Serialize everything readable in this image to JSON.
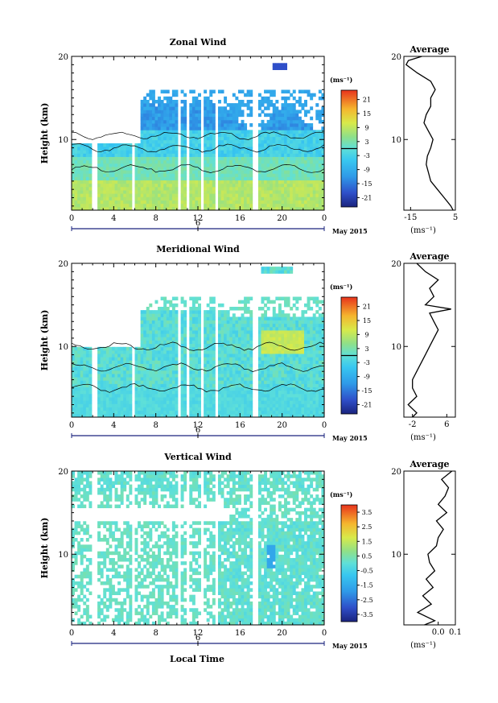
{
  "figure": {
    "xlabel": "Local Time",
    "date_label": "May 2015",
    "day_marker": "6"
  },
  "chart_data": [
    {
      "type": "heatmap",
      "title": "Zonal Wind",
      "ylabel": "Height (km)",
      "x_ticks": [
        "0",
        "4",
        "8",
        "12",
        "16",
        "20",
        "0"
      ],
      "y_ticks": [
        "10",
        "20"
      ],
      "xlim": [
        0,
        24
      ],
      "ylim": [
        1.5,
        20
      ],
      "unit": "(ms⁻¹)",
      "colorbar_ticks": [
        "21",
        "15",
        "9",
        "3",
        "-3",
        "-9",
        "-15",
        "-21"
      ],
      "colorbar_range": [
        -25,
        25
      ],
      "gaps_hours": [
        [
          2.0,
          2.4
        ],
        [
          5.7,
          6.1
        ],
        [
          10.0,
          10.4
        ],
        [
          11.0,
          11.3
        ],
        [
          12.2,
          12.5
        ],
        [
          13.6,
          14.0
        ],
        [
          17.2,
          17.6
        ]
      ],
      "profile": {
        "title": "Average",
        "xlim": [
          -18,
          5
        ],
        "x_ticks": [
          "-15",
          "5"
        ],
        "y_ticks": [
          "10",
          "20"
        ],
        "unit": "(ms⁻¹)",
        "heights_km": [
          1.5,
          2,
          3,
          4,
          5,
          6,
          7,
          8,
          9,
          10,
          11,
          12,
          13,
          14,
          15,
          16,
          17,
          18,
          19,
          19.5,
          20
        ],
        "values": [
          4,
          3,
          0,
          -3,
          -6,
          -7,
          -8,
          -7.5,
          -6,
          -5,
          -7,
          -9,
          -8,
          -6,
          -6,
          -4,
          -6,
          -12,
          -17,
          -16,
          -10
        ]
      }
    },
    {
      "type": "heatmap",
      "title": "Meridional Wind",
      "ylabel": "Height (km)",
      "x_ticks": [
        "0",
        "4",
        "8",
        "12",
        "16",
        "20",
        "0"
      ],
      "y_ticks": [
        "10",
        "20"
      ],
      "xlim": [
        0,
        24
      ],
      "ylim": [
        1.5,
        20
      ],
      "unit": "(ms⁻¹)",
      "colorbar_ticks": [
        "21",
        "15",
        "9",
        "3",
        "-3",
        "-9",
        "-15",
        "-21"
      ],
      "colorbar_range": [
        -25,
        25
      ],
      "gaps_hours": [
        [
          2.0,
          2.4
        ],
        [
          5.7,
          6.1
        ],
        [
          10.0,
          10.4
        ],
        [
          11.0,
          11.3
        ],
        [
          12.2,
          12.5
        ],
        [
          13.6,
          14.0
        ],
        [
          17.2,
          17.6
        ]
      ],
      "profile": {
        "title": "Average",
        "xlim": [
          -4,
          8
        ],
        "x_ticks": [
          "-2",
          "6"
        ],
        "y_ticks": [
          "10",
          "20"
        ],
        "unit": "(ms⁻¹)",
        "heights_km": [
          1.5,
          2,
          3,
          4,
          5,
          6,
          7,
          8,
          9,
          10,
          11,
          12,
          13,
          14,
          14.5,
          15,
          16,
          17,
          18,
          19,
          20
        ],
        "values": [
          -2,
          -1,
          -3,
          -1,
          -2,
          -2,
          -1,
          0,
          1,
          2,
          3,
          4,
          3,
          2,
          7,
          1,
          3,
          2,
          4,
          1,
          -1
        ]
      }
    },
    {
      "type": "heatmap",
      "title": "Vertical Wind",
      "ylabel": "Height (km)",
      "x_ticks": [
        "0",
        "4",
        "8",
        "12",
        "16",
        "20",
        "0"
      ],
      "y_ticks": [
        "10",
        "20"
      ],
      "xlim": [
        0,
        24
      ],
      "ylim": [
        1.5,
        20
      ],
      "unit": "(ms⁻¹)",
      "colorbar_ticks": [
        "3.5",
        "2.5",
        "1.5",
        "0.5",
        "-0.5",
        "-1.5",
        "-2.5",
        "-3.5"
      ],
      "colorbar_range": [
        -4,
        4
      ],
      "gaps_hours": [
        [
          2.0,
          2.4
        ],
        [
          5.7,
          6.1
        ],
        [
          10.0,
          10.4
        ],
        [
          11.0,
          11.3
        ],
        [
          12.2,
          12.5
        ],
        [
          13.6,
          14.0
        ],
        [
          17.2,
          17.6
        ]
      ],
      "profile": {
        "title": "Average",
        "xlim": [
          -0.2,
          0.1
        ],
        "x_ticks": [
          "0.0",
          "0.1"
        ],
        "y_ticks": [
          "10",
          "20"
        ],
        "unit": "(ms⁻¹)",
        "heights_km": [
          1.5,
          2,
          3,
          4,
          5,
          6,
          7,
          8,
          9,
          10,
          11,
          12,
          13,
          14,
          15,
          16,
          17,
          18,
          19,
          20
        ],
        "values": [
          -0.08,
          -0.02,
          -0.12,
          -0.04,
          -0.09,
          -0.03,
          -0.07,
          -0.02,
          -0.05,
          -0.06,
          -0.01,
          0.0,
          0.03,
          -0.01,
          0.05,
          0.0,
          0.04,
          0.06,
          0.02,
          0.08
        ]
      }
    }
  ]
}
